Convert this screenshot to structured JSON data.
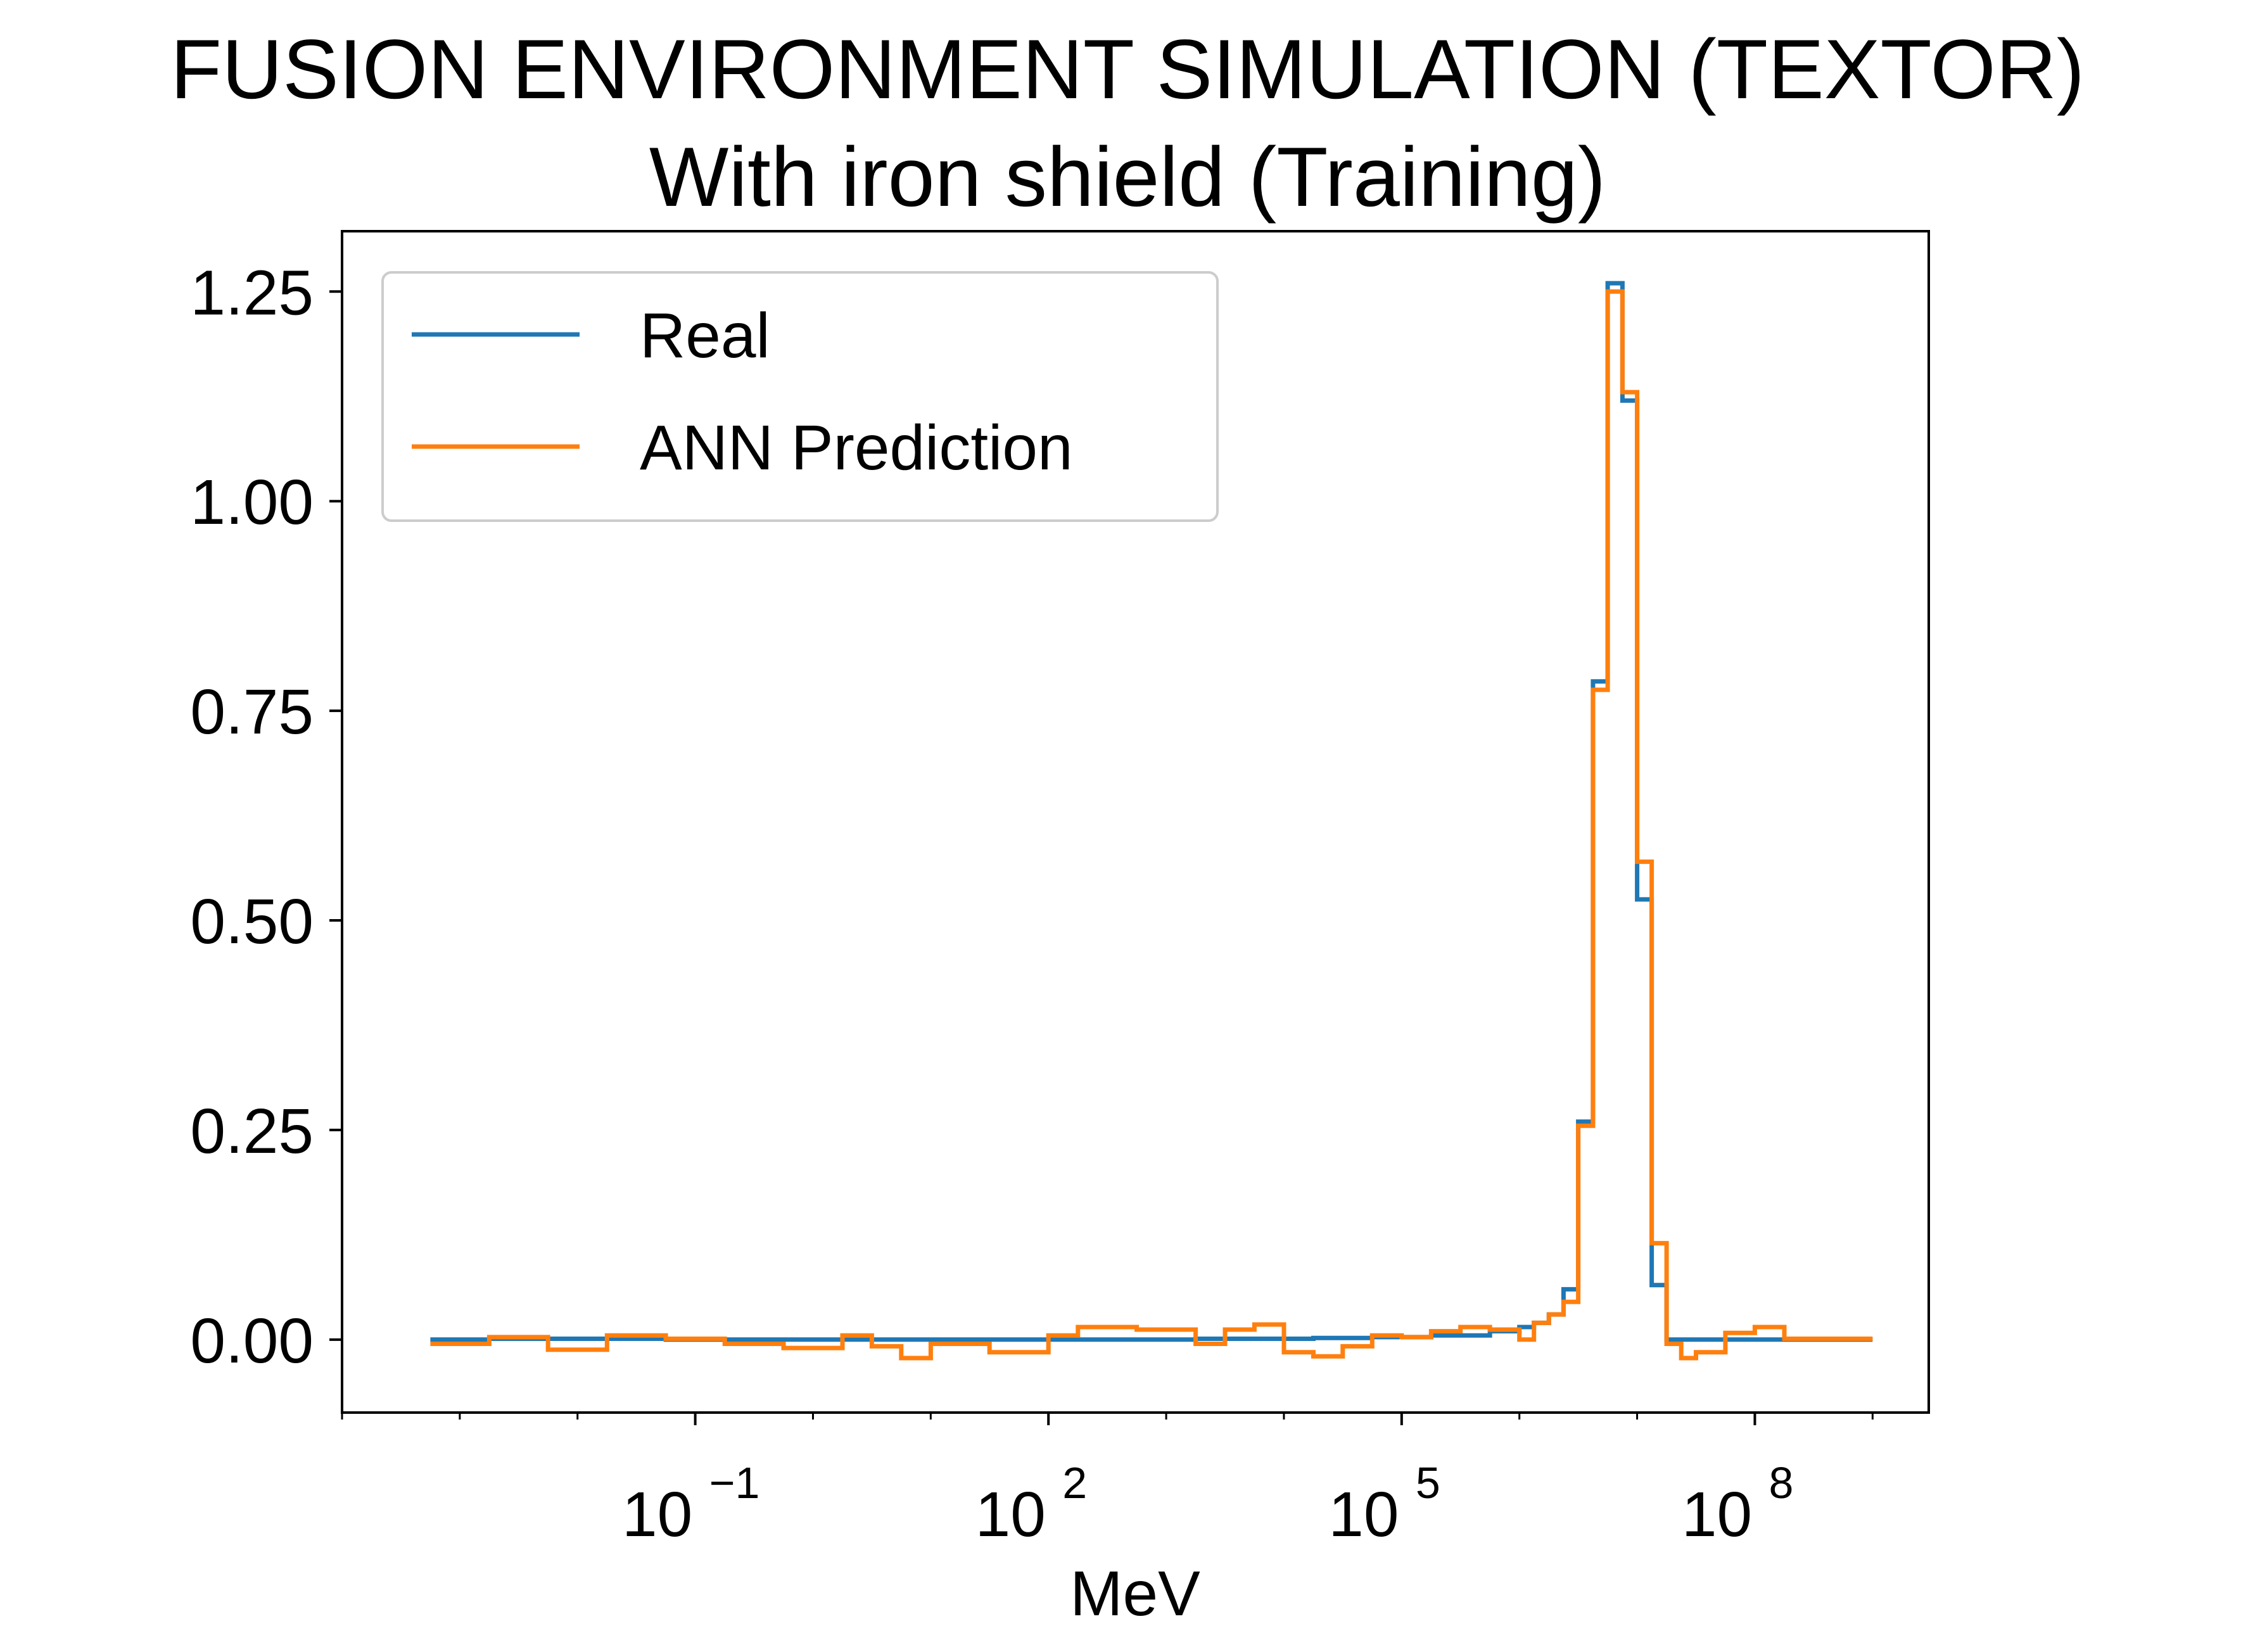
{
  "chart_data": {
    "type": "line",
    "title": "FUSION ENVIRONMENT SIMULATION (TEXTOR)",
    "subtitle": "With iron shield (Training)",
    "xlabel": "MeV",
    "ylabel": "",
    "xscale": "log",
    "xlim": [
      0.0001,
      3000000000
    ],
    "ylim": [
      -0.087,
      1.322
    ],
    "grid": false,
    "legend_placement": "top-left",
    "x_ticks": [
      {
        "base": "10",
        "exp": "−1",
        "value": 0.1
      },
      {
        "base": "10",
        "exp": "2",
        "value": 100
      },
      {
        "base": "10",
        "exp": "5",
        "value": 100000
      },
      {
        "base": "10",
        "exp": "8",
        "value": 100000000
      }
    ],
    "y_ticks": [
      {
        "label": "0.00",
        "value": 0.0
      },
      {
        "label": "0.25",
        "value": 0.25
      },
      {
        "label": "0.50",
        "value": 0.5
      },
      {
        "label": "0.75",
        "value": 0.75
      },
      {
        "label": "1.00",
        "value": 1.0
      },
      {
        "label": "1.25",
        "value": 1.25
      }
    ],
    "series": [
      {
        "name": "Real",
        "color": "#1f77b4",
        "step": "post",
        "x": [
          0.000562,
          0.00178,
          0.00562,
          0.0178,
          0.0562,
          0.178,
          0.562,
          1.78,
          5.62,
          17.8,
          56.2,
          178,
          562,
          1780,
          5620,
          17800,
          56200,
          178000,
          562000,
          1000000,
          1330000,
          1780000,
          2370000,
          3160000,
          4220000,
          5620000,
          7500000,
          10000000,
          13300000,
          17800000,
          23700000,
          31600000,
          56200000,
          100000000,
          178000000,
          1000000000
        ],
        "y": [
          0.0,
          0.001,
          0.001,
          0.001,
          0.0,
          0.0,
          0.0,
          0.0,
          0.0,
          0.0,
          0.0,
          0.0,
          0.0,
          0.001,
          0.001,
          0.002,
          0.003,
          0.005,
          0.01,
          0.015,
          0.02,
          0.03,
          0.06,
          0.26,
          0.785,
          1.26,
          1.12,
          0.525,
          0.065,
          0.0,
          0.0,
          0.0,
          0.0,
          0.0,
          0.0,
          0.0
        ]
      },
      {
        "name": "ANN Prediction",
        "color": "#ff7f0e",
        "step": "post",
        "x": [
          0.000562,
          0.00178,
          0.00562,
          0.0178,
          0.0562,
          0.178,
          0.562,
          1.78,
          3.16,
          5.62,
          10,
          31.6,
          100,
          178,
          562,
          1780,
          3160,
          5620,
          10000,
          17800,
          31600,
          56200,
          100000,
          178000,
          316000,
          562000,
          1000000,
          1330000,
          1780000,
          2370000,
          3160000,
          4220000,
          5620000,
          7500000,
          10000000,
          13300000,
          17800000,
          23700000,
          31600000,
          56200000,
          100000000,
          178000000,
          1000000000
        ],
        "y": [
          -0.005,
          0.003,
          -0.012,
          0.005,
          0.001,
          -0.005,
          -0.01,
          0.005,
          -0.008,
          -0.022,
          -0.005,
          -0.015,
          0.005,
          0.015,
          0.012,
          -0.005,
          0.012,
          0.018,
          -0.015,
          -0.02,
          -0.008,
          0.005,
          0.003,
          0.01,
          0.015,
          0.012,
          0.0,
          0.02,
          0.03,
          0.045,
          0.255,
          0.775,
          1.25,
          1.13,
          0.57,
          0.115,
          -0.005,
          -0.022,
          -0.015,
          0.008,
          0.015,
          0.001,
          0.001
        ]
      }
    ]
  }
}
